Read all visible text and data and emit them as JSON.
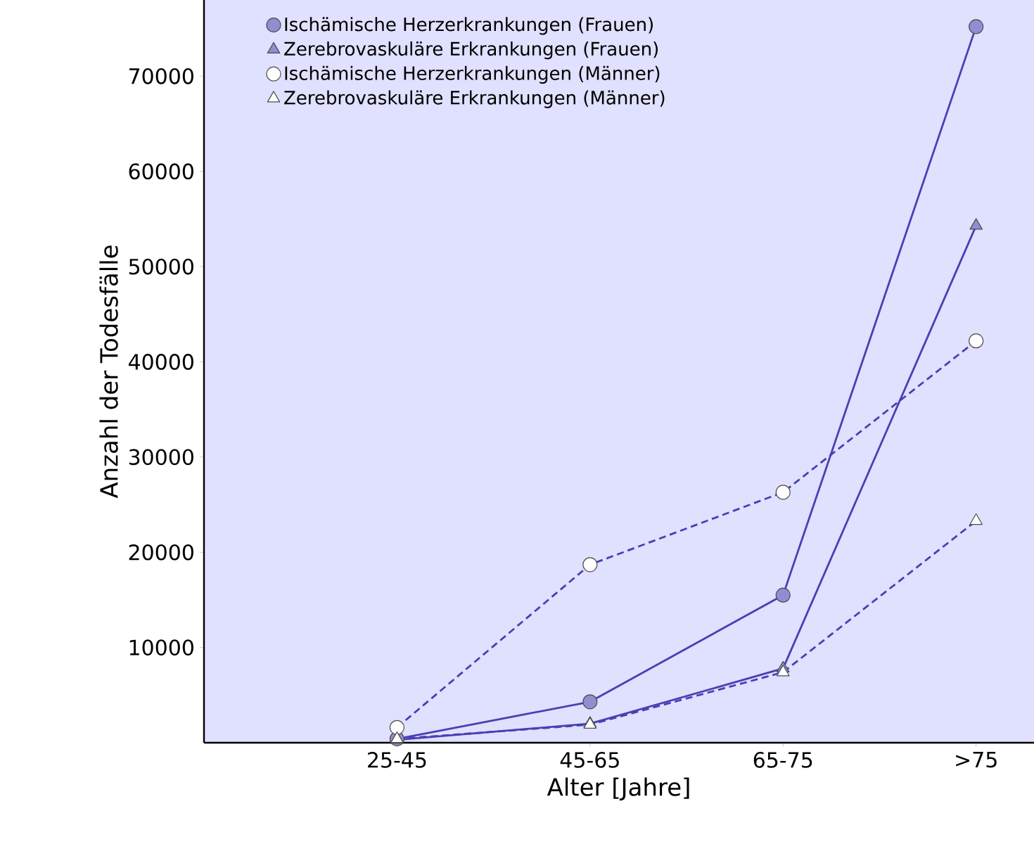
{
  "chart_data": {
    "type": "line",
    "xlabel": "Alter [Jahre]",
    "ylabel": "Anzahl der Todesfälle",
    "categories": [
      "25-45",
      "45-65",
      "65-75",
      ">75"
    ],
    "series": [
      {
        "name": "Ischämische Herzerkrankungen (Frauen)",
        "color": "#4a3fb3",
        "marker": "circle",
        "line_style": "solid",
        "values": [
          400,
          4300,
          15500,
          75200
        ]
      },
      {
        "name": "Zerebrovaskuläre Erkrankungen (Frauen)",
        "color": "#4a3fb3",
        "marker": "triangle",
        "line_style": "solid",
        "values": [
          300,
          2000,
          7800,
          54300
        ]
      },
      {
        "name": "Ischämische Herzerkrankungen (Männer)",
        "color": "#4a3fb3",
        "marker": "circle",
        "line_style": "dashed",
        "values": [
          1600,
          18700,
          26300,
          42200
        ]
      },
      {
        "name": "Zerebrovaskuläre Erkrankungen (Männer)",
        "color": "#4a3fb3",
        "marker": "triangle",
        "line_style": "dashed",
        "values": [
          400,
          1900,
          7400,
          23300
        ]
      }
    ],
    "ylim": [
      0,
      78000
    ],
    "yticks": [
      10000,
      20000,
      30000,
      40000,
      50000,
      60000,
      70000
    ],
    "grid": false,
    "legend": "top left"
  }
}
